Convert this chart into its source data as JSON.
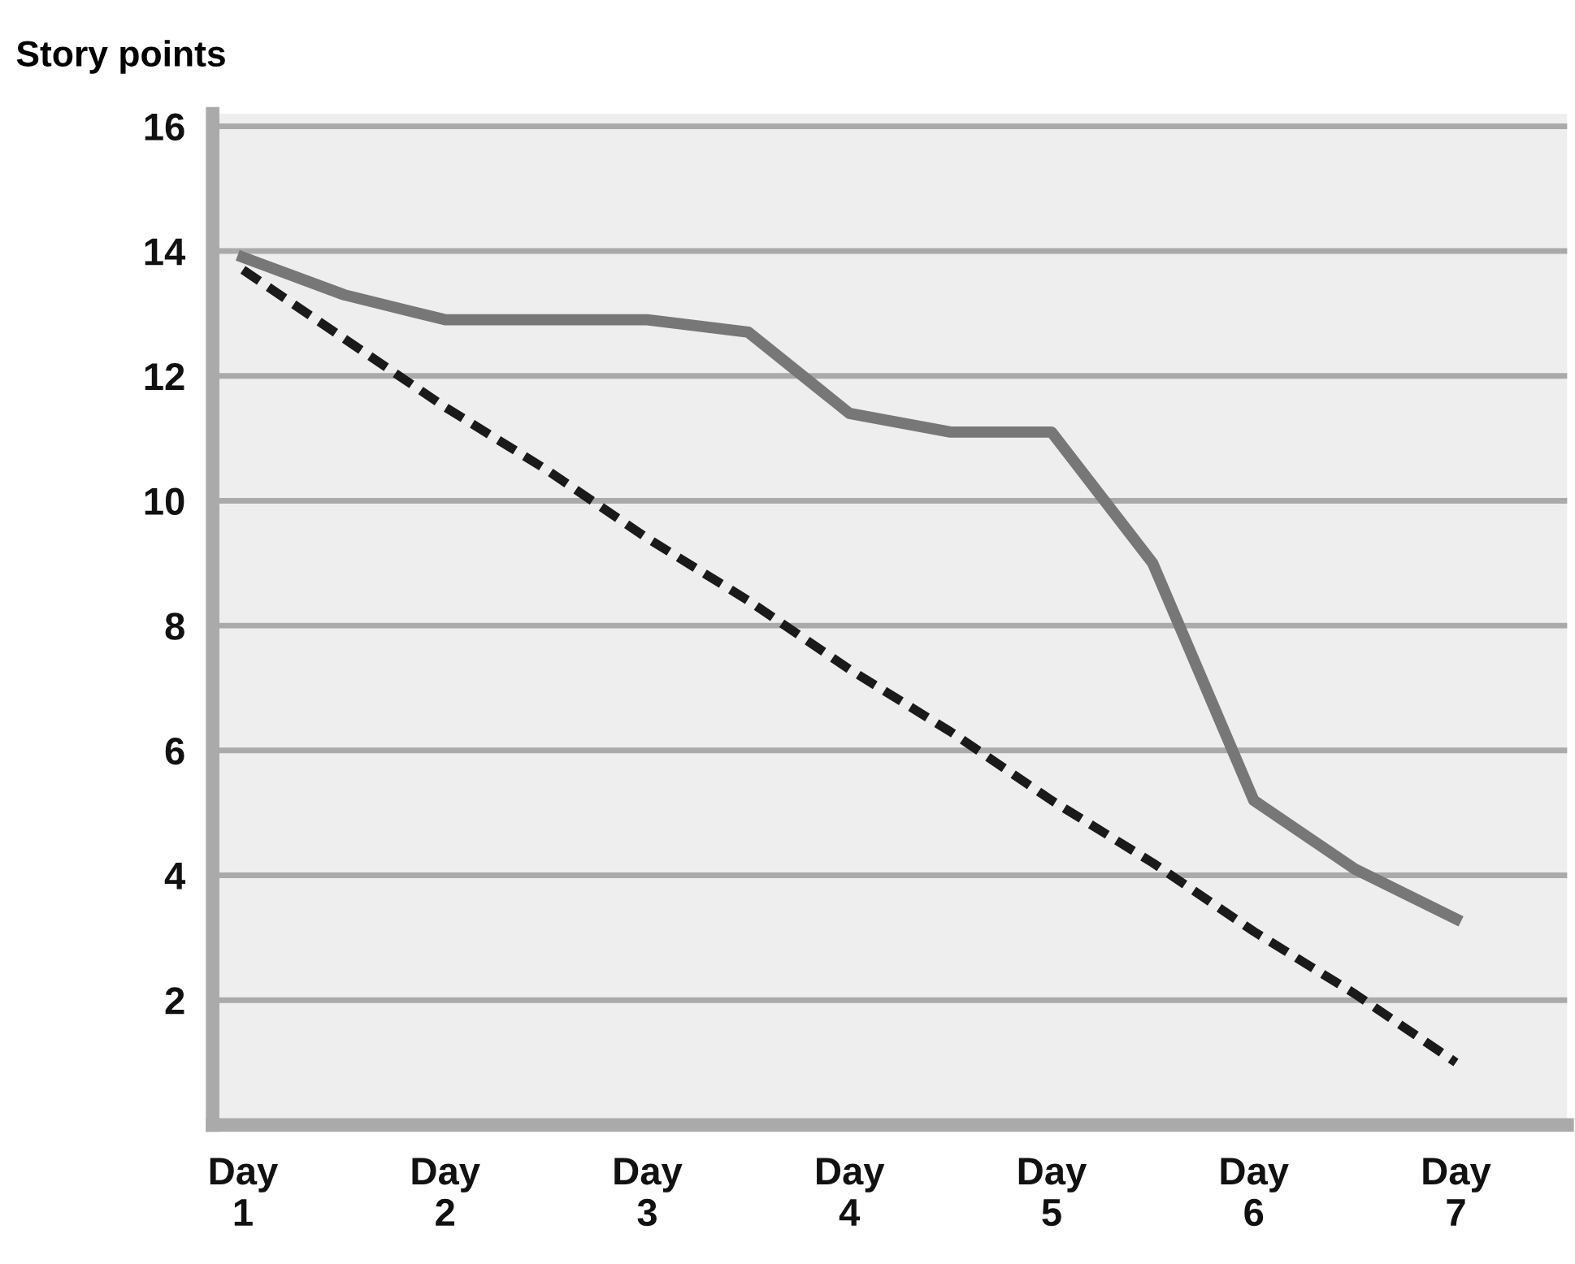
{
  "chart_data": {
    "type": "line",
    "ylabel": "Story points",
    "categories": [
      "Day\n1",
      null,
      "Day\n2",
      null,
      "Day\n3",
      null,
      "Day\n4",
      null,
      "Day\n5",
      null,
      "Day\n6",
      null,
      "Day\n7"
    ],
    "series": [
      {
        "color": "#777777",
        "line_style": "solid",
        "values": [
          13.9,
          13.3,
          12.9,
          12.9,
          12.9,
          12.7,
          11.4,
          11.1,
          11.1,
          9.0,
          5.2,
          4.1,
          3.3
        ]
      },
      {
        "color": "#1a1a1a",
        "line_style": "dashed",
        "values": [
          13.7,
          12.6,
          11.5,
          10.5,
          9.4,
          8.4,
          7.3,
          6.3,
          5.2,
          4.2,
          3.1,
          2.1,
          1.0
        ]
      }
    ],
    "ylim": [
      0,
      16.2
    ],
    "yticks": [
      {
        "value": 0,
        "label": null
      },
      2,
      4,
      6,
      8,
      10,
      12,
      14,
      16
    ],
    "grid": "y",
    "legend": false,
    "marker": "none"
  }
}
